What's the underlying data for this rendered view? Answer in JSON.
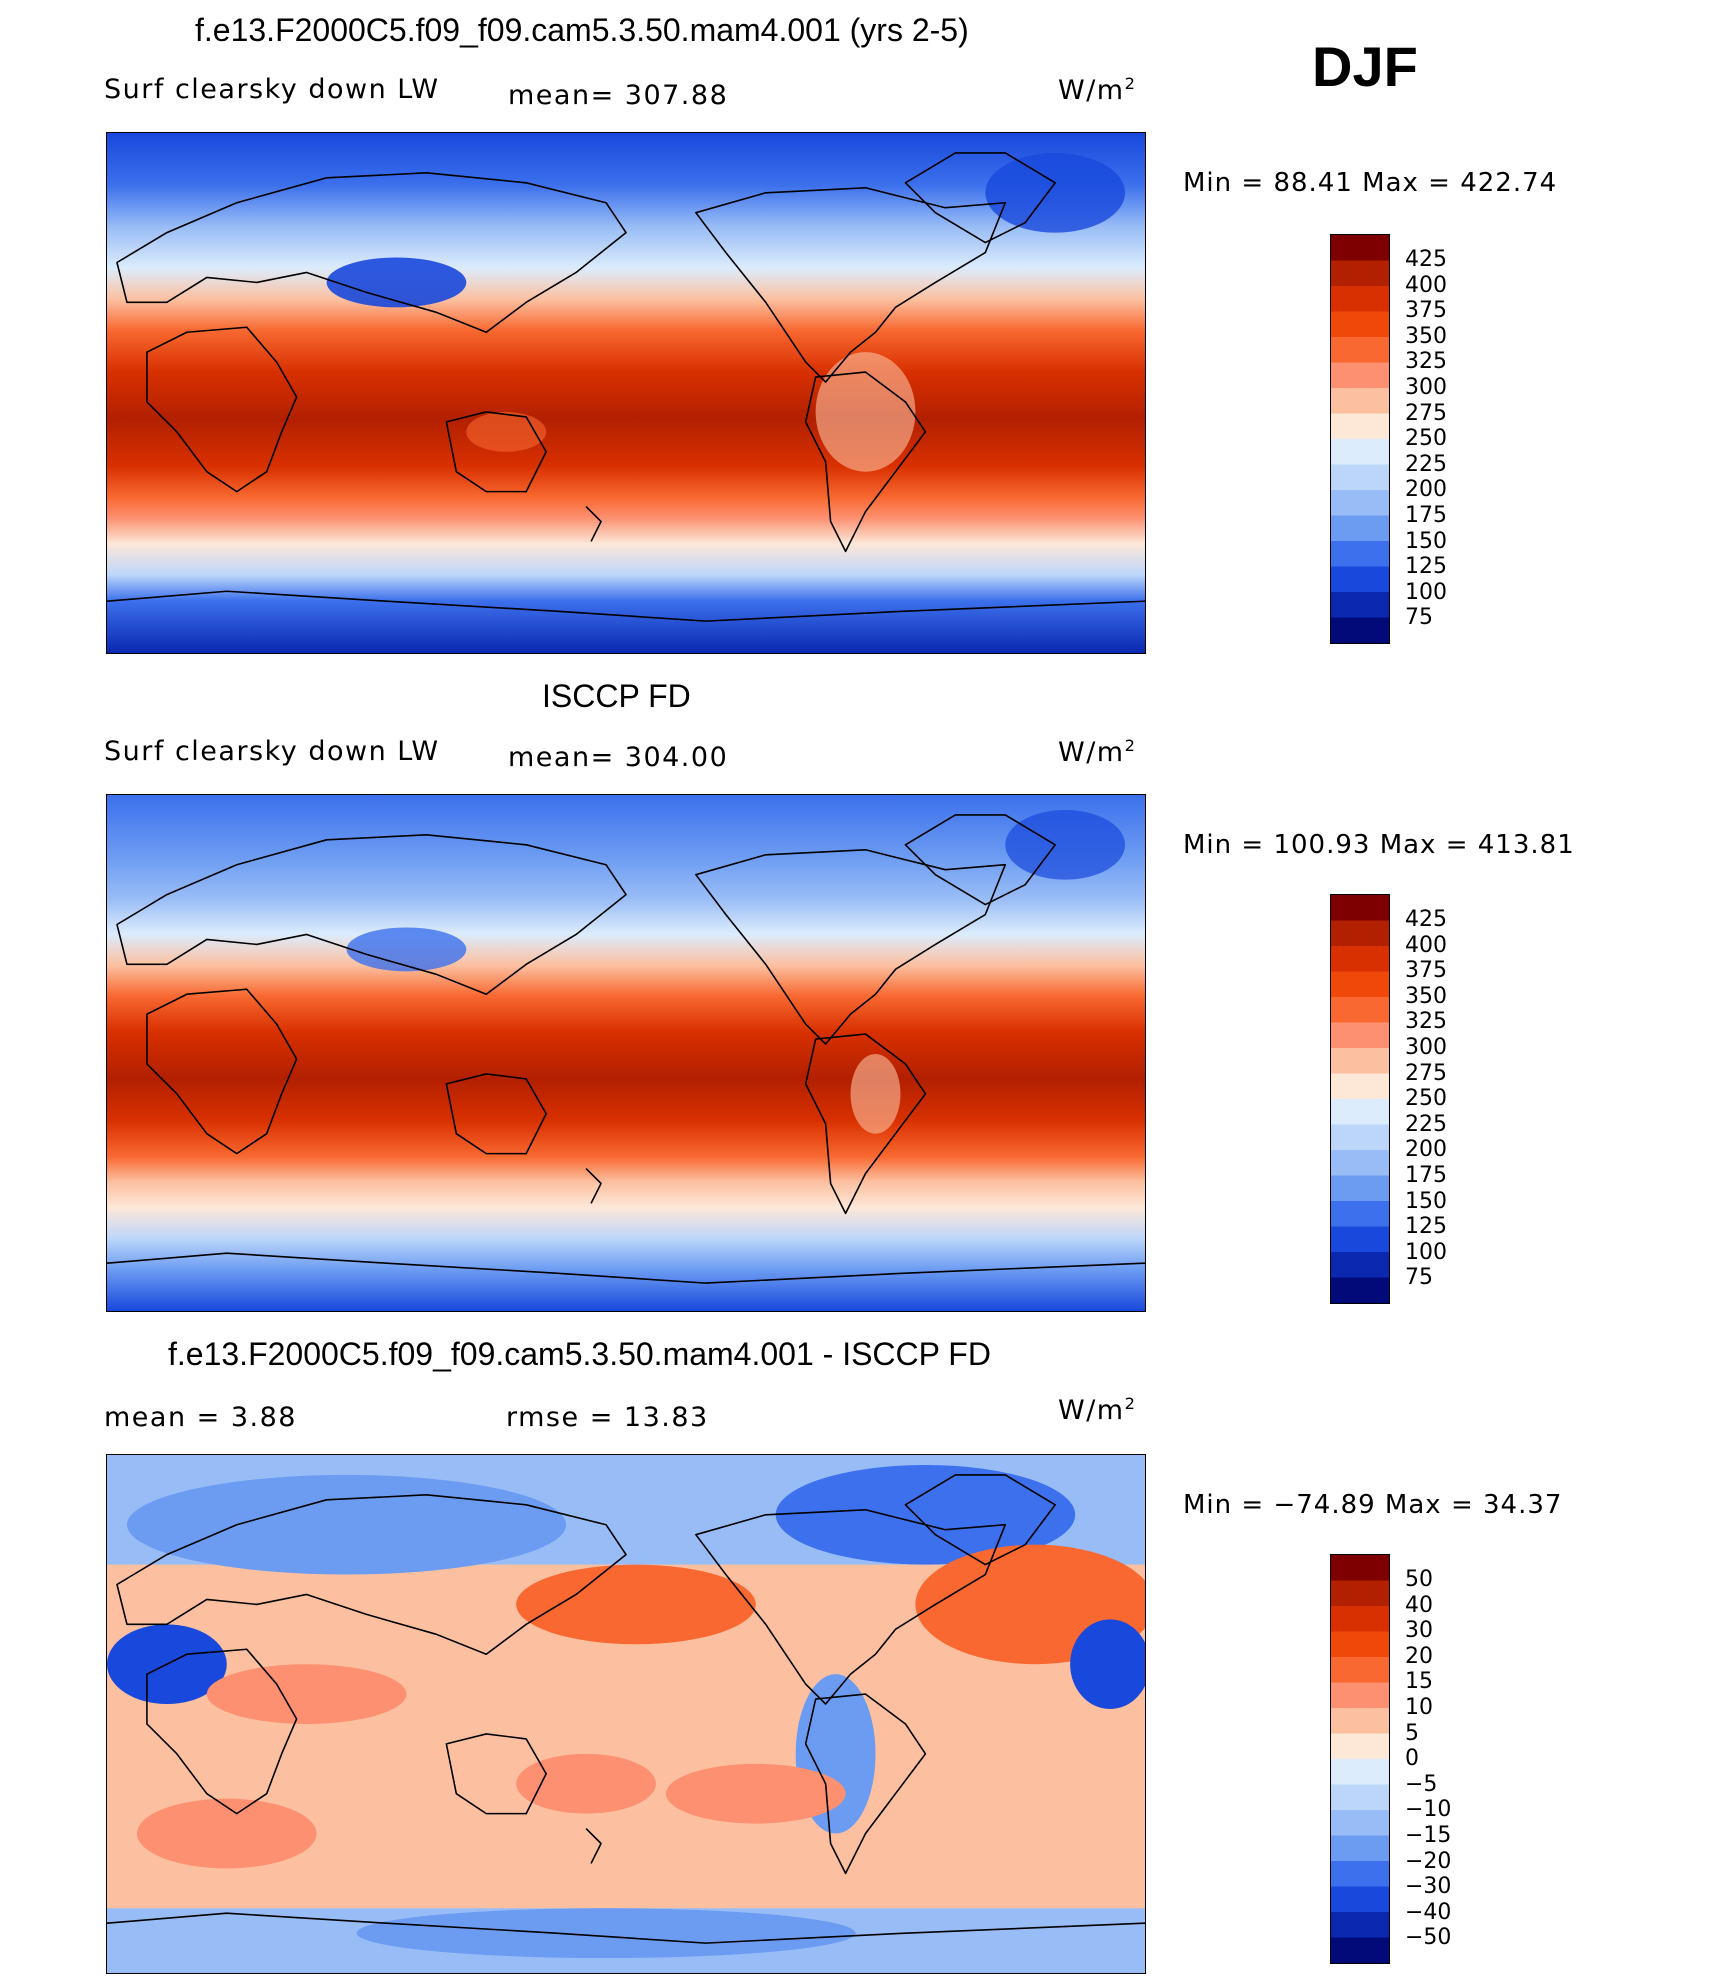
{
  "header": {
    "season": "DJF"
  },
  "panels": [
    {
      "title": "f.e13.F2000C5.f09_f09.cam5.3.50.mam4.001 (yrs 2-5)",
      "left_label": "Surf clearsky down LW",
      "center_label": "mean=  307.88",
      "units_base": "W/m",
      "units_exp": "2",
      "minmax": "Min =   88.41  Max  =  422.74",
      "colorbar_ticks": [
        "425",
        "400",
        "375",
        "350",
        "325",
        "300",
        "275",
        "250",
        "225",
        "200",
        "175",
        "150",
        "125",
        "100",
        "75"
      ]
    },
    {
      "title": "ISCCP FD",
      "left_label": "Surf clearsky down LW",
      "center_label": "mean=  304.00",
      "units_base": "W/m",
      "units_exp": "2",
      "minmax": "Min  =  100.93  Max  =  413.81",
      "colorbar_ticks": [
        "425",
        "400",
        "375",
        "350",
        "325",
        "300",
        "275",
        "250",
        "225",
        "200",
        "175",
        "150",
        "125",
        "100",
        "75"
      ]
    },
    {
      "title": "f.e13.F2000C5.f09_f09.cam5.3.50.mam4.001 - ISCCP FD",
      "left_label": "mean  =     3.88",
      "center_label": "rmse  =     13.83",
      "units_base": "W/m",
      "units_exp": "2",
      "minmax": "Min  =  −74.89  Max  =    34.37",
      "colorbar_ticks": [
        "50",
        "40",
        "30",
        "20",
        "15",
        "10",
        "5",
        "0",
        "−5",
        "−10",
        "−15",
        "−20",
        "−30",
        "−40",
        "−50"
      ]
    }
  ],
  "colors": {
    "palette_top_to_bottom": [
      "#7f0000",
      "#b22000",
      "#d83000",
      "#f04808",
      "#f86830",
      "#fc9070",
      "#fcc0a0",
      "#fde8d8",
      "#dcecfc",
      "#bcd6fa",
      "#98bcf6",
      "#6c9cf2",
      "#3c70ec",
      "#1848dc",
      "#0a28b0",
      "#000a78"
    ]
  }
}
